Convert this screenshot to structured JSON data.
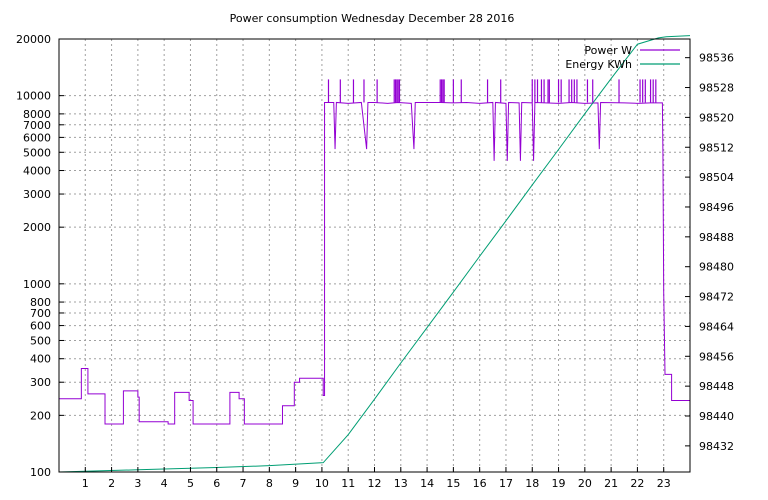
{
  "chart_data": {
    "type": "line",
    "title": "Power consumption Wednesday December 28 2016",
    "x": {
      "range": [
        0,
        24
      ],
      "tick_labels": [
        "1",
        "2",
        "3",
        "4",
        "5",
        "6",
        "7",
        "8",
        "9",
        "10",
        "11",
        "12",
        "13",
        "14",
        "15",
        "16",
        "17",
        "18",
        "19",
        "20",
        "21",
        "22",
        "23"
      ]
    },
    "y_left": {
      "scale": "log",
      "range": [
        100,
        20000
      ],
      "ticks": [
        100,
        200,
        300,
        400,
        500,
        600,
        700,
        800,
        1000,
        2000,
        3000,
        4000,
        5000,
        6000,
        7000,
        8000,
        10000,
        20000
      ],
      "tick_labels": [
        "100",
        "200",
        "300",
        "400",
        "500",
        "600",
        "700",
        "800",
        "1000",
        "2000",
        "3000",
        "4000",
        "5000",
        "6000",
        "7000",
        "8000",
        "10000",
        "20000"
      ]
    },
    "y_right": {
      "scale": "linear",
      "range": [
        98425,
        98541
      ],
      "ticks": [
        98432,
        98440,
        98448,
        98456,
        98464,
        98472,
        98480,
        98488,
        98496,
        98504,
        98512,
        98520,
        98528,
        98536
      ],
      "tick_labels": [
        "98432",
        "98440",
        "98448",
        "98456",
        "98464",
        "98472",
        "98480",
        "98488",
        "98496",
        "98504",
        "98512",
        "98520",
        "98528",
        "98536"
      ]
    },
    "grid": true,
    "legend_position": "top-right",
    "series": [
      {
        "name": "Power W",
        "color": "#9400d3",
        "axis": "left",
        "values": [
          [
            0,
            245
          ],
          [
            0.85,
            245
          ],
          [
            0.85,
            355
          ],
          [
            1.1,
            355
          ],
          [
            1.1,
            260
          ],
          [
            1.75,
            260
          ],
          [
            1.75,
            180
          ],
          [
            2.45,
            180
          ],
          [
            2.45,
            270
          ],
          [
            3.0,
            270
          ],
          [
            3.0,
            250
          ],
          [
            3.05,
            250
          ],
          [
            3.05,
            185
          ],
          [
            4.15,
            185
          ],
          [
            4.15,
            180
          ],
          [
            4.4,
            180
          ],
          [
            4.4,
            265
          ],
          [
            4.95,
            265
          ],
          [
            4.95,
            240
          ],
          [
            5.1,
            240
          ],
          [
            5.1,
            180
          ],
          [
            6.5,
            180
          ],
          [
            6.5,
            265
          ],
          [
            6.85,
            265
          ],
          [
            6.85,
            245
          ],
          [
            7.05,
            245
          ],
          [
            7.05,
            180
          ],
          [
            8.5,
            180
          ],
          [
            8.5,
            225
          ],
          [
            8.95,
            225
          ],
          [
            8.95,
            300
          ],
          [
            9.15,
            300
          ],
          [
            9.15,
            315
          ],
          [
            10.05,
            315
          ],
          [
            10.05,
            255
          ],
          [
            10.1,
            255
          ],
          [
            10.1,
            9200
          ],
          [
            10.45,
            9200
          ],
          [
            10.5,
            5200
          ],
          [
            10.55,
            9200
          ],
          [
            11.0,
            9100
          ],
          [
            11.5,
            9200
          ],
          [
            11.7,
            5200
          ],
          [
            11.75,
            9200
          ],
          [
            12.0,
            9200
          ],
          [
            12.5,
            9100
          ],
          [
            12.9,
            9200
          ],
          [
            13.4,
            9100
          ],
          [
            13.5,
            5200
          ],
          [
            13.55,
            9200
          ],
          [
            14.5,
            9200
          ],
          [
            15.0,
            9150
          ],
          [
            15.5,
            9200
          ],
          [
            16.0,
            9100
          ],
          [
            16.5,
            9200
          ],
          [
            16.55,
            4500
          ],
          [
            16.6,
            9200
          ],
          [
            17.0,
            9100
          ],
          [
            17.05,
            4500
          ],
          [
            17.1,
            9200
          ],
          [
            17.5,
            9150
          ],
          [
            17.55,
            4500
          ],
          [
            17.6,
            9200
          ],
          [
            18.0,
            9150
          ],
          [
            18.05,
            4500
          ],
          [
            18.1,
            9200
          ],
          [
            18.5,
            9150
          ],
          [
            19.0,
            9100
          ],
          [
            19.5,
            9200
          ],
          [
            20.0,
            9100
          ],
          [
            20.5,
            9150
          ],
          [
            20.55,
            5200
          ],
          [
            20.6,
            9200
          ],
          [
            21.5,
            9150
          ],
          [
            22.0,
            9100
          ],
          [
            22.5,
            9150
          ],
          [
            22.95,
            9150
          ],
          [
            22.97,
            5000
          ],
          [
            23.0,
            900
          ],
          [
            23.05,
            330
          ],
          [
            23.3,
            330
          ],
          [
            23.3,
            240
          ],
          [
            24,
            240
          ]
        ]
      },
      {
        "name": "Energy KWh",
        "color": "#009e73",
        "axis": "right",
        "values": [
          [
            0,
            98425.0
          ],
          [
            3,
            98425.6
          ],
          [
            6,
            98426.2
          ],
          [
            8,
            98426.7
          ],
          [
            10.05,
            98427.5
          ],
          [
            11,
            98435.0
          ],
          [
            12,
            98444.5
          ],
          [
            13,
            98454.2
          ],
          [
            14,
            98463.7
          ],
          [
            15,
            98473.2
          ],
          [
            16,
            98482.8
          ],
          [
            17,
            98492.3
          ],
          [
            18,
            98501.9
          ],
          [
            19,
            98511.4
          ],
          [
            20,
            98521.0
          ],
          [
            21,
            98530.4
          ],
          [
            22,
            98539.6
          ],
          [
            22.8,
            98541.3
          ],
          [
            23.1,
            98541.6
          ],
          [
            24,
            98541.9
          ]
        ]
      }
    ]
  }
}
